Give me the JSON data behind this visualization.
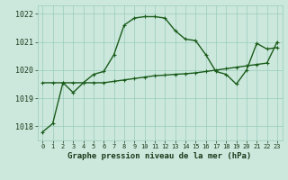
{
  "curve1_y": [
    1017.8,
    1018.1,
    1019.55,
    1019.2,
    1019.55,
    1019.85,
    1019.95,
    1020.55,
    1021.6,
    1021.85,
    1021.9,
    1021.9,
    1021.85,
    1021.4,
    1021.1,
    1021.05,
    1020.55,
    1019.95,
    1019.85,
    1019.5,
    1020.0,
    1020.95,
    1020.75,
    1020.8
  ],
  "curve2_y": [
    1019.55,
    1019.55,
    1019.55,
    1019.55,
    1019.55,
    1019.55,
    1019.55,
    1019.6,
    1019.65,
    1019.7,
    1019.75,
    1019.8,
    1019.82,
    1019.85,
    1019.87,
    1019.9,
    1019.95,
    1020.0,
    1020.05,
    1020.1,
    1020.15,
    1020.2,
    1020.25,
    1021.0
  ],
  "background_color": "#cce8dd",
  "grid_color": "#99ccbb",
  "line_color": "#1a5c1a",
  "xlabel": "Graphe pression niveau de la mer (hPa)",
  "ylim": [
    1017.5,
    1022.3
  ],
  "yticks": [
    1018,
    1019,
    1020,
    1021,
    1022
  ],
  "xtick_labels": [
    "0",
    "1",
    "2",
    "3",
    "4",
    "5",
    "6",
    "7",
    "8",
    "9",
    "10",
    "11",
    "12",
    "13",
    "14",
    "15",
    "16",
    "17",
    "18",
    "19",
    "20",
    "21",
    "22",
    "23"
  ],
  "marker": "+",
  "line_width": 1.0,
  "marker_size": 3,
  "xlabel_fontsize": 6.5,
  "ytick_fontsize": 6,
  "xtick_fontsize": 5
}
